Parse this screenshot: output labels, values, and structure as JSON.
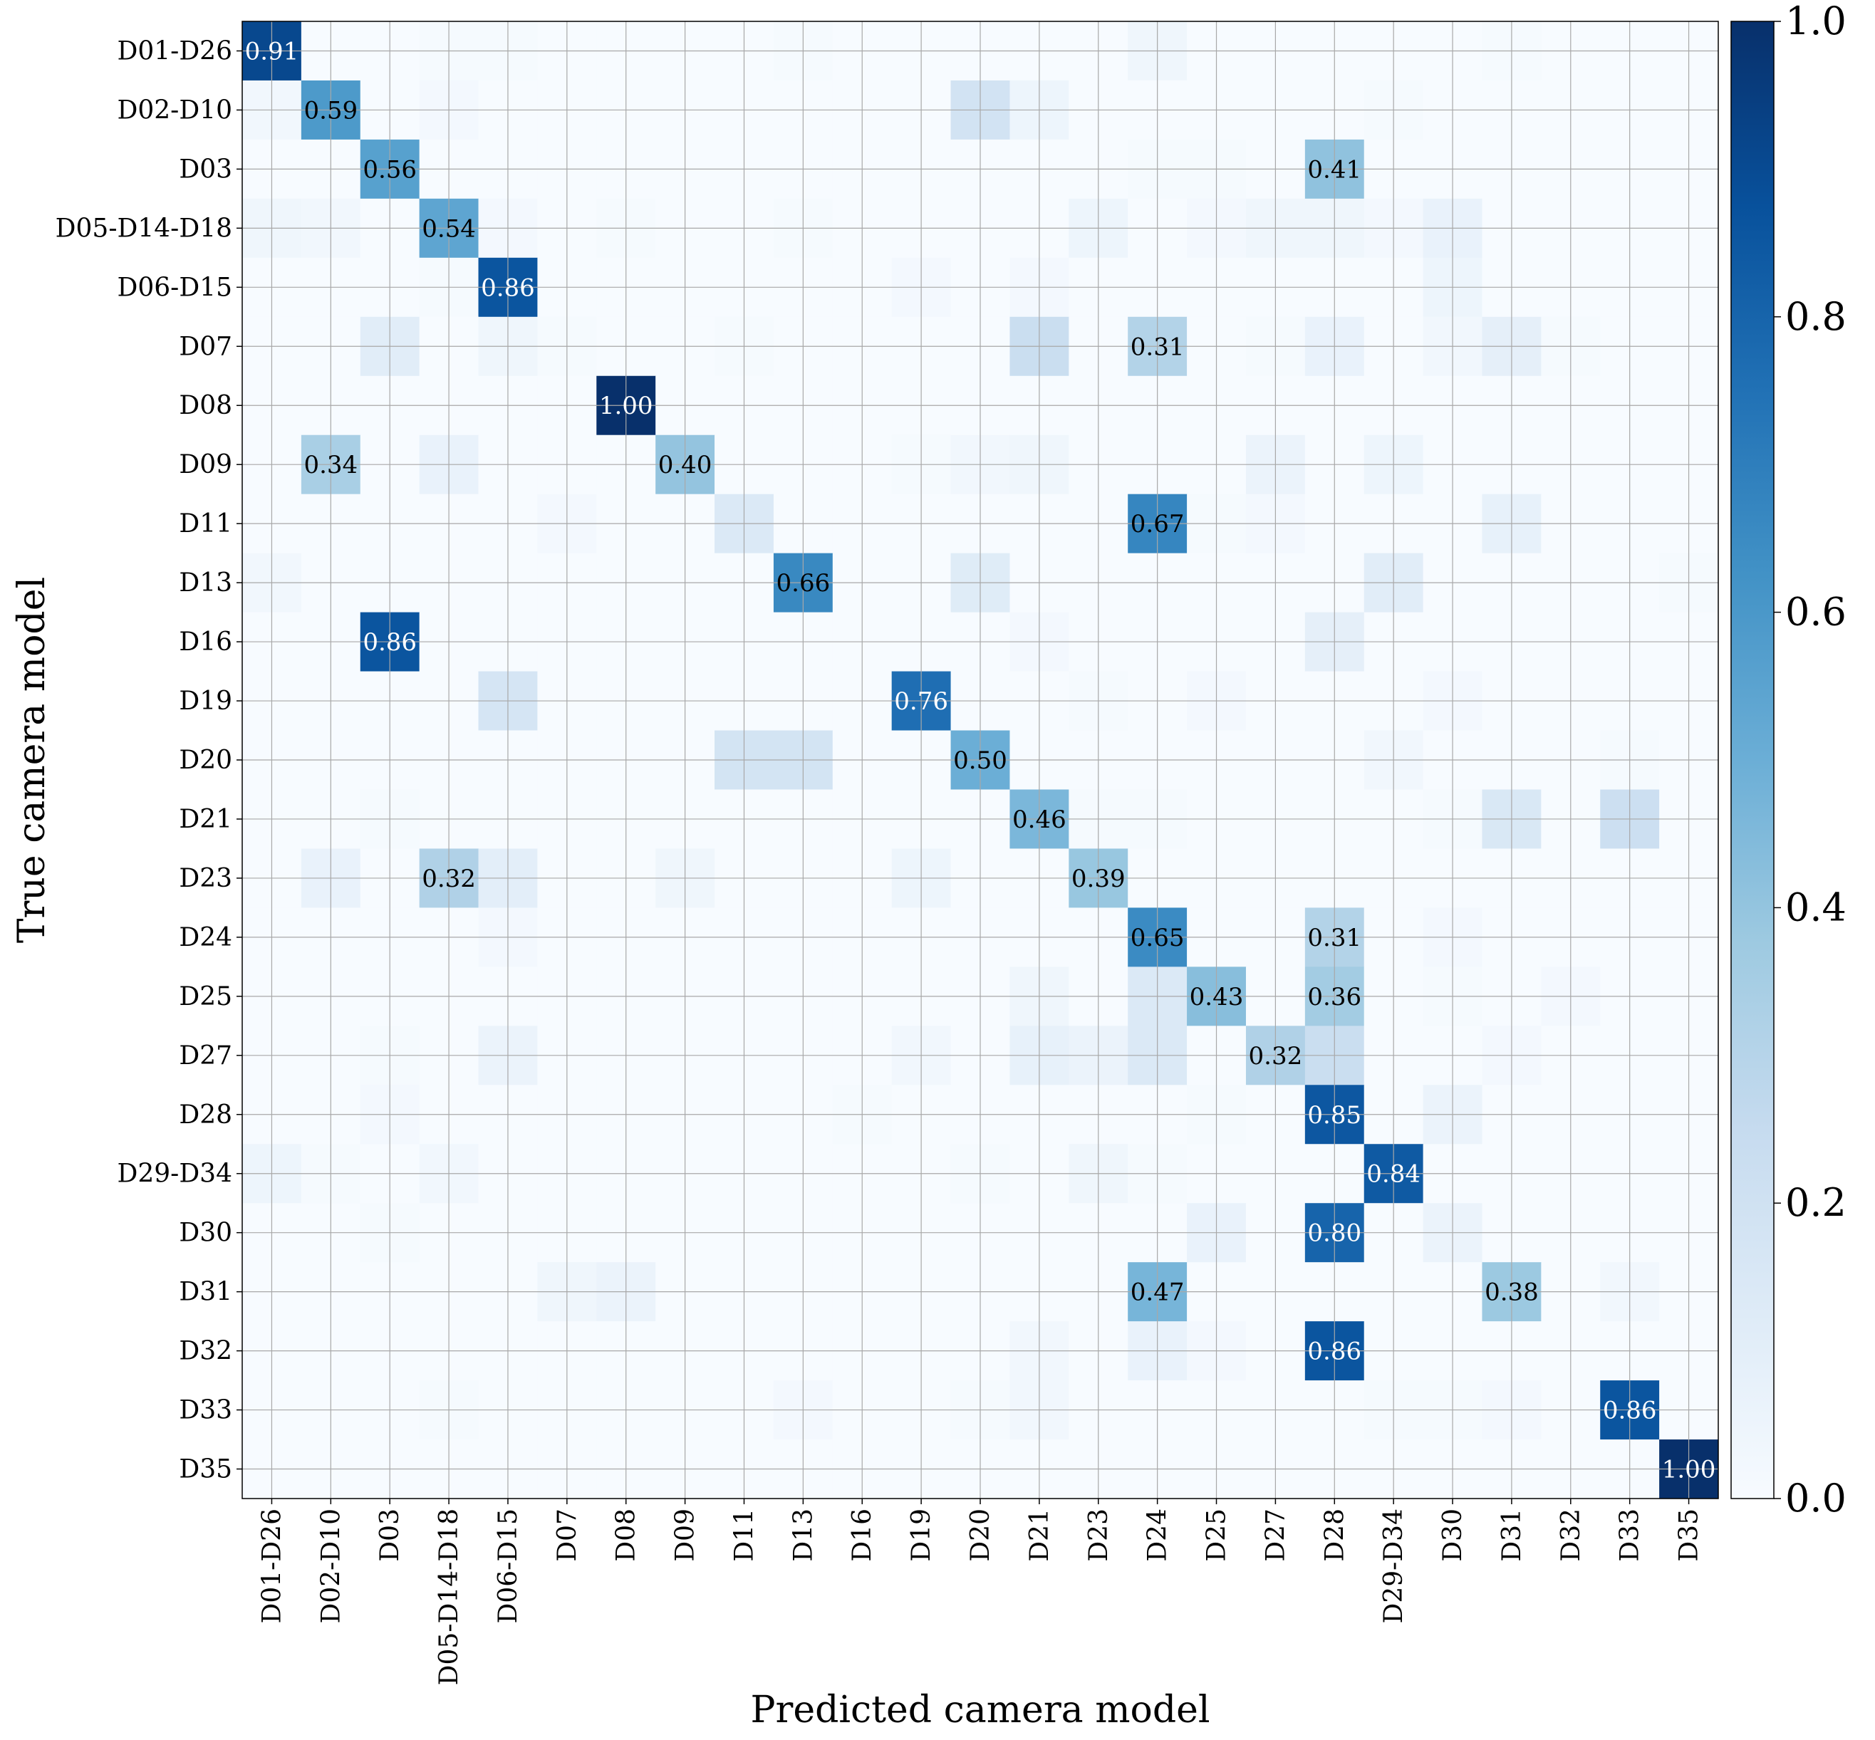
{
  "chart_data": {
    "type": "heatmap",
    "xlabel": "Predicted camera model",
    "ylabel": "True camera model",
    "labels": [
      "D01-D26",
      "D02-D10",
      "D03",
      "D05-D14-D18",
      "D06-D15",
      "D07",
      "D08",
      "D09",
      "D11",
      "D13",
      "D16",
      "D19",
      "D20",
      "D21",
      "D23",
      "D24",
      "D25",
      "D27",
      "D28",
      "D29-D34",
      "D30",
      "D31",
      "D32",
      "D33",
      "D35"
    ],
    "colormap": "Blues",
    "colorbar": {
      "min": 0.0,
      "max": 1.0,
      "ticks": [
        "0.0",
        "0.2",
        "0.4",
        "0.6",
        "0.8",
        "1.0"
      ]
    },
    "grid": true,
    "text_threshold": 0.7,
    "matrix": [
      [
        0.91,
        0,
        0,
        0.01,
        0.01,
        0,
        0,
        0,
        0,
        0.01,
        0,
        0,
        0,
        0,
        0,
        0.04,
        0,
        0,
        0,
        0,
        0,
        0.01,
        0,
        0,
        0
      ],
      [
        0.03,
        0.59,
        0,
        0.02,
        0,
        0,
        0,
        0,
        0,
        0,
        0,
        0,
        0.19,
        0.05,
        0,
        0,
        0,
        0,
        0,
        0.01,
        0,
        0,
        0,
        0,
        0
      ],
      [
        0,
        0,
        0.56,
        0,
        0,
        0,
        0,
        0,
        0,
        0,
        0,
        0,
        0,
        0,
        0,
        0.01,
        0.01,
        0,
        0.41,
        0,
        0,
        0,
        0,
        0,
        0
      ],
      [
        0.04,
        0.03,
        0,
        0.54,
        0.02,
        0,
        0.01,
        0,
        0,
        0.01,
        0,
        0,
        0,
        0,
        0.05,
        0,
        0.02,
        0.04,
        0.04,
        0.02,
        0.07,
        0,
        0,
        0,
        0
      ],
      [
        0,
        0,
        0,
        0.01,
        0.86,
        0,
        0,
        0,
        0,
        0,
        0,
        0.02,
        0,
        0.02,
        0,
        0,
        0,
        0,
        0,
        0,
        0.05,
        0,
        0,
        0,
        0
      ],
      [
        0,
        0,
        0.11,
        0,
        0.04,
        0.01,
        0,
        0,
        0.01,
        0,
        0,
        0,
        0,
        0.23,
        0,
        0.31,
        0,
        0.01,
        0.07,
        0,
        0.03,
        0.09,
        0.01,
        0,
        0
      ],
      [
        0,
        0,
        0,
        0,
        0,
        0,
        1.0,
        0,
        0,
        0,
        0,
        0,
        0,
        0,
        0,
        0,
        0,
        0,
        0,
        0,
        0,
        0,
        0,
        0,
        0
      ],
      [
        0,
        0.34,
        0,
        0.07,
        0,
        0,
        0,
        0.4,
        0,
        0,
        0,
        0.01,
        0.03,
        0.04,
        0,
        0,
        0,
        0.06,
        0,
        0.05,
        0,
        0,
        0,
        0,
        0
      ],
      [
        0,
        0,
        0,
        0,
        0,
        0.02,
        0,
        0,
        0.14,
        0,
        0,
        0,
        0,
        0,
        0,
        0.67,
        0.01,
        0.02,
        0,
        0,
        0,
        0.08,
        0,
        0,
        0
      ],
      [
        0.03,
        0,
        0,
        0,
        0,
        0,
        0,
        0,
        0,
        0.66,
        0,
        0,
        0.12,
        0,
        0,
        0,
        0,
        0,
        0,
        0.11,
        0,
        0,
        0,
        0,
        0.01
      ],
      [
        0,
        0,
        0.86,
        0,
        0,
        0,
        0,
        0,
        0,
        0,
        0,
        0,
        0,
        0.02,
        0,
        0,
        0,
        0,
        0.09,
        0,
        0,
        0,
        0,
        0,
        0
      ],
      [
        0,
        0,
        0,
        0,
        0.17,
        0,
        0,
        0,
        0,
        0,
        0,
        0.76,
        0,
        0,
        0.01,
        0,
        0.02,
        0,
        0,
        0,
        0.02,
        0,
        0,
        0,
        0
      ],
      [
        0,
        0,
        0,
        0,
        0,
        0,
        0,
        0,
        0.18,
        0.18,
        0,
        0,
        0.5,
        0,
        0,
        0,
        0,
        0,
        0,
        0.03,
        0,
        0,
        0,
        0.01,
        0
      ],
      [
        0,
        0,
        0.01,
        0,
        0,
        0,
        0,
        0,
        0,
        0,
        0,
        0,
        0,
        0.46,
        0.01,
        0.01,
        0,
        0,
        0,
        0,
        0.01,
        0.15,
        0,
        0.22,
        0
      ],
      [
        0,
        0.07,
        0,
        0.32,
        0.1,
        0,
        0,
        0.04,
        0,
        0,
        0,
        0.05,
        0,
        0,
        0.39,
        0,
        0,
        0,
        0,
        0,
        0,
        0,
        0,
        0,
        0
      ],
      [
        0,
        0,
        0,
        0,
        0.02,
        0,
        0,
        0,
        0,
        0,
        0,
        0,
        0,
        0,
        0,
        0.65,
        0,
        0,
        0.31,
        0,
        0.02,
        0,
        0,
        0,
        0
      ],
      [
        0,
        0,
        0,
        0,
        0,
        0,
        0,
        0,
        0,
        0,
        0,
        0,
        0,
        0.04,
        0,
        0.14,
        0.43,
        0,
        0.36,
        0,
        0.01,
        0,
        0.02,
        0,
        0
      ],
      [
        0,
        0,
        0.01,
        0,
        0.06,
        0,
        0,
        0,
        0,
        0,
        0,
        0.03,
        0,
        0.08,
        0.06,
        0.14,
        0,
        0.32,
        0.23,
        0,
        0,
        0.02,
        0,
        0,
        0
      ],
      [
        0,
        0,
        0.02,
        0,
        0,
        0,
        0,
        0,
        0,
        0,
        0.01,
        0,
        0,
        0,
        0,
        0,
        0.01,
        0,
        0.85,
        0,
        0.06,
        0,
        0,
        0,
        0
      ],
      [
        0.05,
        0.01,
        0,
        0.03,
        0,
        0,
        0,
        0,
        0,
        0,
        0,
        0,
        0.01,
        0,
        0.04,
        0.01,
        0,
        0,
        0,
        0.84,
        0,
        0,
        0,
        0,
        0
      ],
      [
        0,
        0,
        0.01,
        0,
        0,
        0,
        0,
        0,
        0,
        0,
        0,
        0,
        0,
        0,
        0,
        0,
        0.07,
        0,
        0.8,
        0,
        0.06,
        0,
        0,
        0,
        0
      ],
      [
        0,
        0,
        0,
        0,
        0,
        0.04,
        0.06,
        0,
        0,
        0,
        0,
        0,
        0,
        0,
        0,
        0.47,
        0,
        0,
        0,
        0,
        0,
        0.38,
        0,
        0.03,
        0
      ],
      [
        0,
        0,
        0,
        0,
        0,
        0,
        0,
        0,
        0,
        0,
        0,
        0,
        0,
        0.03,
        0,
        0.07,
        0.02,
        0,
        0.86,
        0,
        0,
        0,
        0,
        0,
        0
      ],
      [
        0,
        0,
        0,
        0.01,
        0,
        0,
        0,
        0,
        0,
        0.02,
        0,
        0,
        0.01,
        0.03,
        0,
        0,
        0,
        0,
        0,
        0.01,
        0.01,
        0.02,
        0,
        0.86,
        0
      ],
      [
        0,
        0,
        0,
        0,
        0,
        0,
        0,
        0,
        0,
        0,
        0,
        0,
        0,
        0,
        0,
        0,
        0,
        0,
        0,
        0,
        0,
        0,
        0,
        0,
        1.0
      ]
    ]
  }
}
